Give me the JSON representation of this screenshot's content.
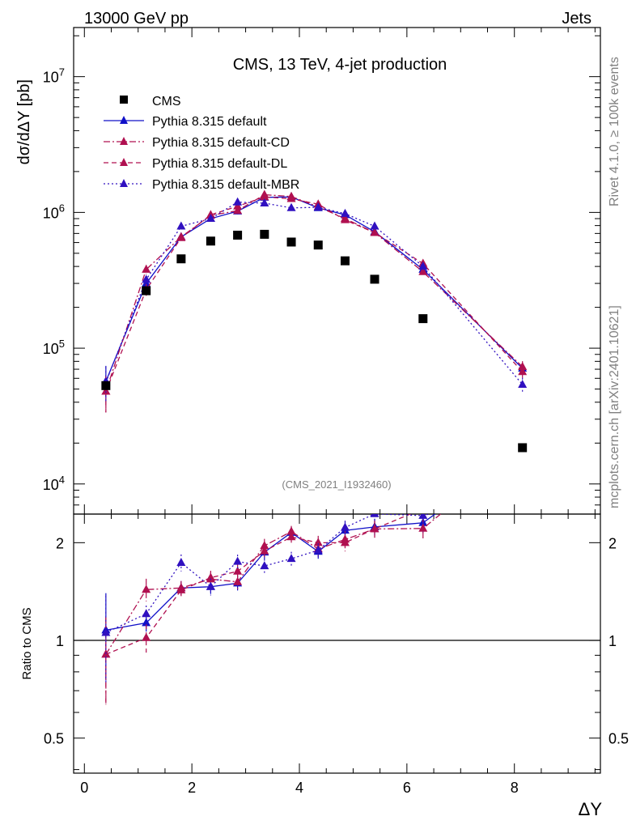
{
  "header": {
    "left": "13000 GeV pp",
    "right": "Jets"
  },
  "side_text": {
    "rivet": "Rivet 4.1.0, ≥ 100k events",
    "source": "mcplots.cern.ch [arXiv:2401.10621]"
  },
  "chart_data": {
    "type": "scatter",
    "title": "CMS, 13 TeV, 4-jet production",
    "analysis_label": "(CMS_2021_I1932460)",
    "xlabel": "ΔY",
    "ylabel": "dσ/dΔY [pb]",
    "ratio_ylabel": "Ratio to CMS",
    "xlim": [
      -0.2,
      9.6
    ],
    "ylim": [
      6000,
      23000000
    ],
    "yscale": "log",
    "ratio_ylim": [
      0.39,
      2.45
    ],
    "ratio_yscale": "log",
    "x_ticks": [
      "0",
      "2",
      "4",
      "6",
      "8"
    ],
    "y_ticks": [
      {
        "base": "10",
        "exp": "4",
        "value": 10000
      },
      {
        "base": "10",
        "exp": "5",
        "value": 100000
      },
      {
        "base": "10",
        "exp": "6",
        "value": 1000000
      },
      {
        "base": "10",
        "exp": "7",
        "value": 10000000
      }
    ],
    "ratio_ticks": [
      {
        "label": "0.5",
        "value": 0.5
      },
      {
        "label": "1",
        "value": 1
      },
      {
        "label": "2",
        "value": 2
      }
    ],
    "x": [
      0.4,
      1.15,
      1.8,
      2.35,
      2.85,
      3.35,
      3.85,
      4.35,
      4.85,
      5.4,
      6.3,
      8.15
    ],
    "data": {
      "name": "CMS",
      "values": [
        53000,
        265000,
        455000,
        615000,
        680000,
        690000,
        605000,
        575000,
        440000,
        322000,
        165000,
        18500
      ]
    },
    "series": [
      {
        "name": "Pythia 8.315 default",
        "color": "#1010c8",
        "dash": "",
        "values": [
          57000,
          300000,
          660000,
          900000,
          1020000,
          1290000,
          1300000,
          1080000,
          960000,
          720000,
          380000,
          71000
        ],
        "errors": [
          0.3,
          0.06,
          0.05,
          0.05,
          0.05,
          0.05,
          0.04,
          0.05,
          0.06,
          0.06,
          0.07,
          0.1
        ]
      },
      {
        "name": "Pythia 8.315 default-CD",
        "color": "#b01050",
        "dash": "8,3,2,3",
        "values": [
          48000,
          380000,
          660000,
          950000,
          1030000,
          1350000,
          1310000,
          1100000,
          900000,
          710000,
          365000,
          73000
        ],
        "errors": [
          0.3,
          0.08,
          0.05,
          0.05,
          0.05,
          0.05,
          0.04,
          0.05,
          0.06,
          0.06,
          0.07,
          0.1
        ]
      },
      {
        "name": "Pythia 8.315 default-DL",
        "color": "#b01050",
        "dash": "6,4",
        "values": [
          48000,
          270000,
          650000,
          960000,
          1110000,
          1300000,
          1260000,
          1150000,
          880000,
          710000,
          420000,
          67000
        ],
        "errors": [
          0.3,
          0.1,
          0.05,
          0.05,
          0.05,
          0.05,
          0.04,
          0.05,
          0.06,
          0.06,
          0.07,
          0.1
        ]
      },
      {
        "name": "Pythia 8.315 default-MBR",
        "color": "#3010c0",
        "dash": "2,3",
        "values": [
          56000,
          320000,
          790000,
          900000,
          1190000,
          1170000,
          1080000,
          1090000,
          980000,
          790000,
          400000,
          54000
        ],
        "errors": [
          0.3,
          0.06,
          0.06,
          0.06,
          0.05,
          0.05,
          0.05,
          0.05,
          0.05,
          0.05,
          0.07,
          0.12
        ]
      }
    ],
    "legend_position": "top-left"
  }
}
